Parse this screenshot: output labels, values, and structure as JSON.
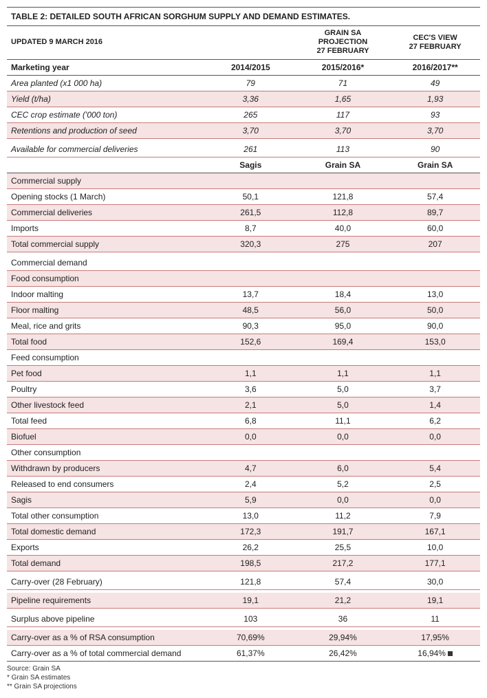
{
  "title": "TABLE 2: DETAILED SOUTH AFRICAN SORGHUM SUPPLY AND DEMAND ESTIMATES.",
  "header": {
    "updated": "UPDATED 9 MARCH 2016",
    "col2_l1": "GRAIN SA PROJECTION",
    "col2_l2": "27 FEBRUARY",
    "col3_l1": "CEC'S VIEW",
    "col3_l2": "27 FEBRUARY"
  },
  "years": {
    "label": "Marketing year",
    "c1": "2014/2015",
    "c2": "2015/2016*",
    "c3": "2016/2017**"
  },
  "block1": [
    {
      "label": "Area planted (x1 000 ha)",
      "c1": "79",
      "c2": "71",
      "c3": "49",
      "italic": true,
      "pink": false
    },
    {
      "label": "Yield (t/ha)",
      "c1": "3,36",
      "c2": "1,65",
      "c3": "1,93",
      "italic": true,
      "pink": true
    },
    {
      "label": "CEC crop estimate ('000 ton)",
      "c1": "265",
      "c2": "117",
      "c3": "93",
      "italic": true,
      "pink": false
    },
    {
      "label": "Retentions and production of seed",
      "c1": "3,70",
      "c2": "3,70",
      "c3": "3,70",
      "italic": true,
      "pink": true
    }
  ],
  "avail": {
    "label": "Available for commercial deliveries",
    "c1": "261",
    "c2": "113",
    "c3": "90"
  },
  "sources": {
    "c1": "Sagis",
    "c2": "Grain SA",
    "c3": "Grain SA"
  },
  "supply_hdr": "Commercial supply",
  "supply": [
    {
      "label": "Opening stocks (1 March)",
      "c1": "50,1",
      "c2": "121,8",
      "c3": "57,4",
      "pink": false
    },
    {
      "label": "Commercial deliveries",
      "c1": "261,5",
      "c2": "112,8",
      "c3": "89,7",
      "pink": true
    },
    {
      "label": "Imports",
      "c1": "8,7",
      "c2": "40,0",
      "c3": "60,0",
      "pink": false
    },
    {
      "label": "Total commercial supply",
      "c1": "320,3",
      "c2": "275",
      "c3": "207",
      "pink": true
    }
  ],
  "demand_hdr": "Commercial demand",
  "food_hdr": "Food consumption",
  "food": [
    {
      "label": "Indoor malting",
      "c1": "13,7",
      "c2": "18,4",
      "c3": "13,0",
      "pink": false
    },
    {
      "label": "Floor malting",
      "c1": "48,5",
      "c2": "56,0",
      "c3": "50,0",
      "pink": true
    },
    {
      "label": "Meal, rice and grits",
      "c1": "90,3",
      "c2": "95,0",
      "c3": "90,0",
      "pink": false
    },
    {
      "label": "Total food",
      "c1": "152,6",
      "c2": "169,4",
      "c3": "153,0",
      "pink": true
    }
  ],
  "feed_hdr": "Feed consumption",
  "feed": [
    {
      "label": "Pet food",
      "c1": "1,1",
      "c2": "1,1",
      "c3": "1,1",
      "pink": true
    },
    {
      "label": "Poultry",
      "c1": "3,6",
      "c2": "5,0",
      "c3": "3,7",
      "pink": false
    },
    {
      "label": "Other livestock feed",
      "c1": "2,1",
      "c2": "5,0",
      "c3": "1,4",
      "pink": true
    },
    {
      "label": "Total feed",
      "c1": "6,8",
      "c2": "11,1",
      "c3": "6,2",
      "pink": false
    },
    {
      "label": "Biofuel",
      "c1": "0,0",
      "c2": "0,0",
      "c3": "0,0",
      "pink": true
    }
  ],
  "other_hdr": "Other consumption",
  "other": [
    {
      "label": "Withdrawn by producers",
      "c1": "4,7",
      "c2": "6,0",
      "c3": "5,4",
      "pink": true
    },
    {
      "label": "Released to end consumers",
      "c1": "2,4",
      "c2": "5,2",
      "c3": "2,5",
      "pink": false
    },
    {
      "label": "Sagis",
      "c1": "5,9",
      "c2": "0,0",
      "c3": "0,0",
      "pink": true
    },
    {
      "label": "Total other consumption",
      "c1": "13,0",
      "c2": "11,2",
      "c3": "7,9",
      "pink": false
    },
    {
      "label": "Total domestic demand",
      "c1": "172,3",
      "c2": "191,7",
      "c3": "167,1",
      "pink": true
    },
    {
      "label": "Exports",
      "c1": "26,2",
      "c2": "25,5",
      "c3": "10,0",
      "pink": false
    },
    {
      "label": "Total demand",
      "c1": "198,5",
      "c2": "217,2",
      "c3": "177,1",
      "pink": true
    }
  ],
  "carry": {
    "label": "Carry-over (28 February)",
    "c1": "121,8",
    "c2": "57,4",
    "c3": "30,0"
  },
  "pipeline": {
    "label": "Pipeline requirements",
    "c1": "19,1",
    "c2": "21,2",
    "c3": "19,1"
  },
  "surplus": {
    "label": "Surplus above pipeline",
    "c1": "103",
    "c2": "36",
    "c3": "11"
  },
  "pct": [
    {
      "label": "Carry-over as a % of RSA consumption",
      "c1": "70,69%",
      "c2": "29,94%",
      "c3": "17,95%",
      "pink": true
    },
    {
      "label": "Carry-over as a % of total commercial demand",
      "c1": "61,37%",
      "c2": "26,42%",
      "c3": "16,94%",
      "pink": false,
      "endmark": true
    }
  ],
  "footnotes": [
    "Source: Grain SA",
    "* Grain SA estimates",
    "** Grain SA projections"
  ],
  "colors": {
    "pink_bg": "#f6e3e3",
    "row_border": "#c77a7a",
    "hard_border": "#555"
  }
}
